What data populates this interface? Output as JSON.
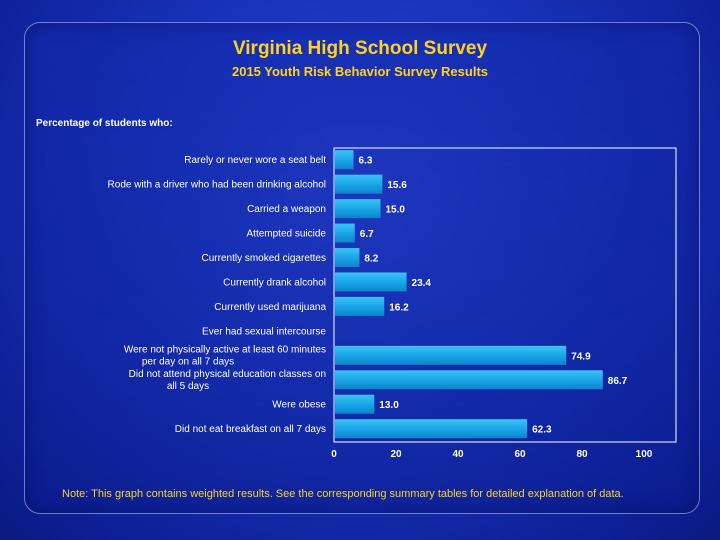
{
  "slide": {
    "title": "Virginia High School Survey",
    "subtitle": "2015 Youth Risk Behavior Survey Results",
    "caption": "Percentage of students who:",
    "note": "Note: This graph contains weighted results. See the corresponding summary tables for detailed explanation of data."
  },
  "chart_data": {
    "type": "bar",
    "orientation": "horizontal",
    "categories": [
      "Rarely or never wore a seat belt",
      "Rode with a driver who had been drinking alcohol",
      "Carried a weapon",
      "Attempted suicide",
      "Currently smoked cigarettes",
      "Currently drank alcohol",
      "Currently used marijuana",
      "Ever had sexual intercourse",
      "Were not physically active at least 60 minutes per day on all 7 days",
      "Did not attend physical education classes on all 5 days",
      "Were obese",
      "Did not eat breakfast on all 7 days"
    ],
    "values": [
      6.3,
      15.6,
      15.0,
      6.7,
      8.2,
      23.4,
      16.2,
      null,
      74.9,
      86.7,
      13.0,
      62.3
    ],
    "value_labels": [
      "6.3",
      "15.6",
      "15.0",
      "6.7",
      "8.2",
      "23.4",
      "16.2",
      "",
      "74.9",
      "86.7",
      "13.0",
      "62.3"
    ],
    "xlim": [
      0,
      100
    ],
    "xticks": [
      "0",
      "20",
      "40",
      "60",
      "80",
      "100"
    ],
    "title": "",
    "xlabel": "",
    "ylabel": "",
    "grid": false,
    "bar_color": "#1aa6e8",
    "colors": {
      "title": "#ffd21f",
      "text": "#ffffff",
      "plot_border": "#ffffff"
    }
  }
}
